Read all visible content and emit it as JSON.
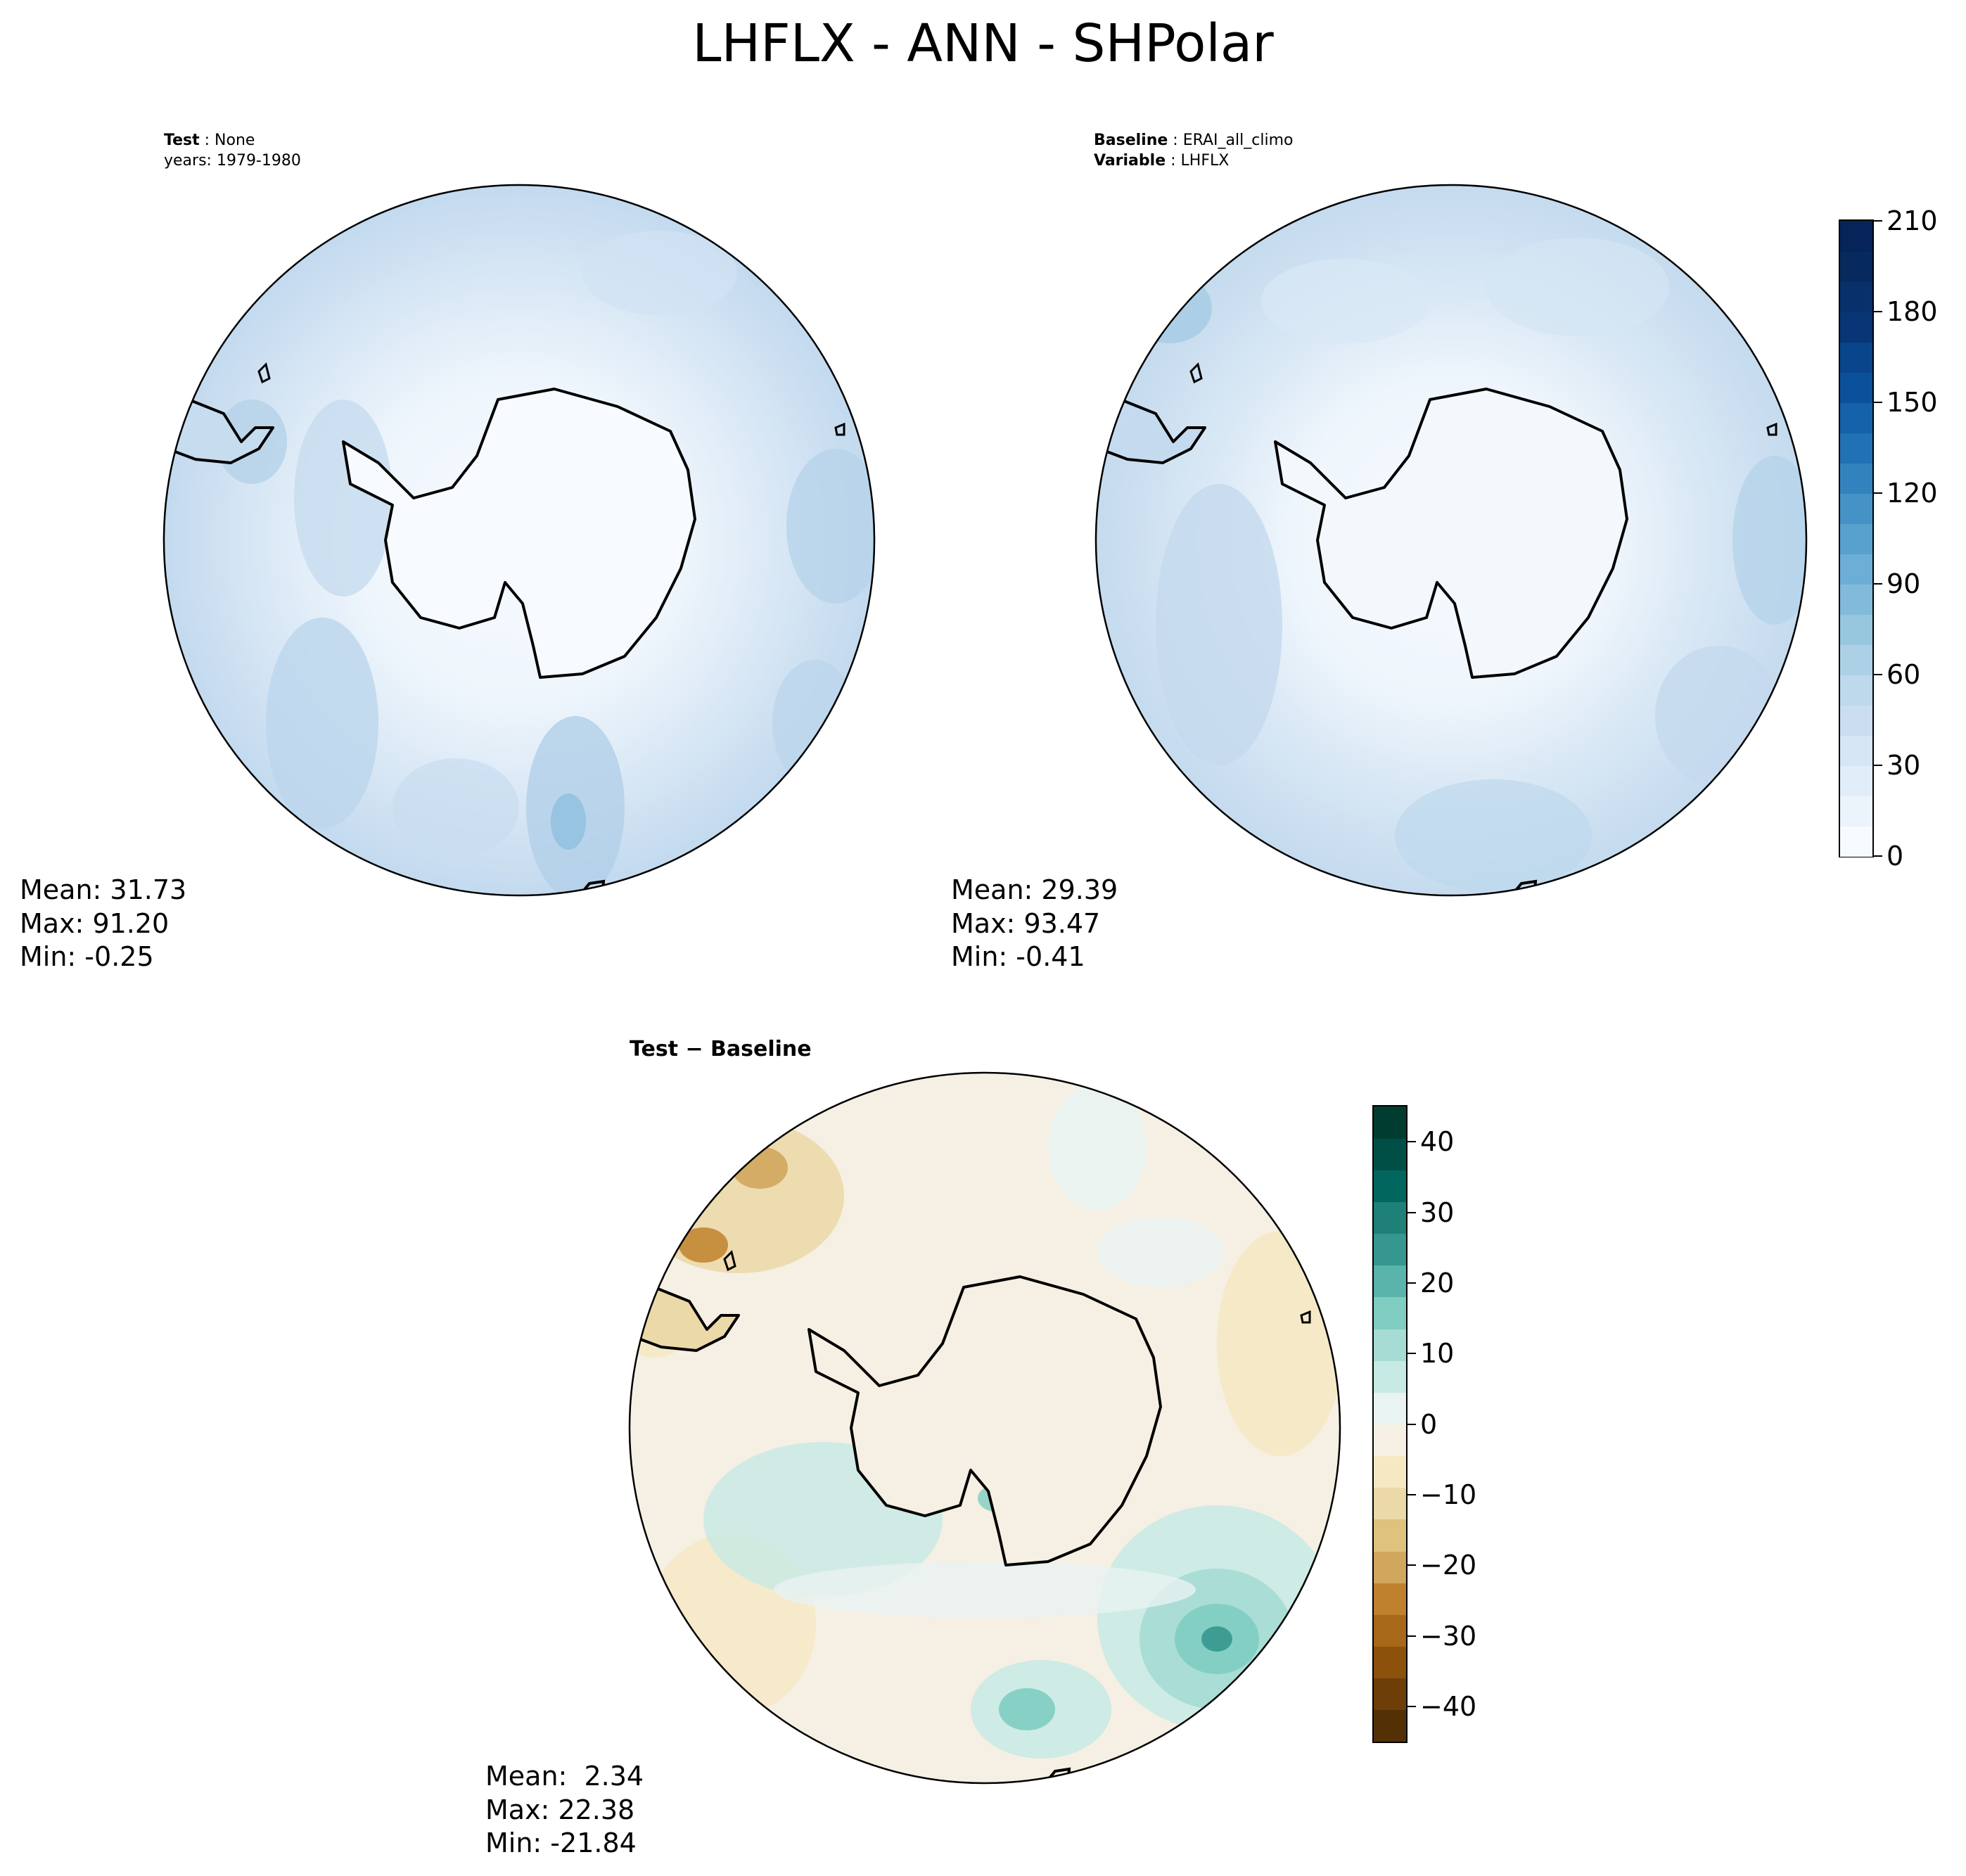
{
  "figure": {
    "title": "LHFLX - ANN - SHPolar"
  },
  "panels": {
    "test": {
      "meta_label": "Test",
      "meta_value": "None",
      "years": "years: 1979-1980",
      "mean": "Mean: 31.73",
      "max": "Max: 91.20",
      "min": "Min: -0.25"
    },
    "baseline": {
      "meta_label": "Baseline",
      "meta_value": "ERAI_all_climo",
      "variable_label": "Variable",
      "variable_value": "LHFLX",
      "mean": "Mean: 29.39",
      "max": "Max: 93.47",
      "min": "Min: -0.41"
    },
    "diff": {
      "title": "Test − Baseline",
      "mean": "Mean:  2.34",
      "max": "Max: 22.38",
      "min": "Min: -21.84"
    }
  },
  "colorbars": {
    "main": {
      "ticks": [
        "0",
        "30",
        "60",
        "90",
        "120",
        "150",
        "180",
        "210"
      ],
      "colors": [
        "#f7fbff",
        "#ebf3fb",
        "#e1edf8",
        "#d6e6f4",
        "#cadef0",
        "#bed8ec",
        "#acd0e6",
        "#97c6df",
        "#82badb",
        "#6caed6",
        "#58a1cf",
        "#4592c6",
        "#3282be",
        "#2171b5",
        "#1561aa",
        "#0b509b",
        "#08458a",
        "#083575",
        "#08306b",
        "#072a5e",
        "#06245a"
      ]
    },
    "diff": {
      "ticks": [
        "40",
        "30",
        "20",
        "10",
        "0",
        "−10",
        "−20",
        "−30",
        "−40"
      ],
      "colors": [
        "#543005",
        "#6e3e08",
        "#8c510a",
        "#a8681a",
        "#bf812d",
        "#d1a65d",
        "#dfc27d",
        "#ecd9a8",
        "#f6e8c3",
        "#f5f0e3",
        "#e9f3f1",
        "#c7eae5",
        "#a6dcd3",
        "#80cdc1",
        "#5ab4ac",
        "#35978f",
        "#1f8077",
        "#01665e",
        "#004f47",
        "#003c30"
      ]
    }
  }
}
